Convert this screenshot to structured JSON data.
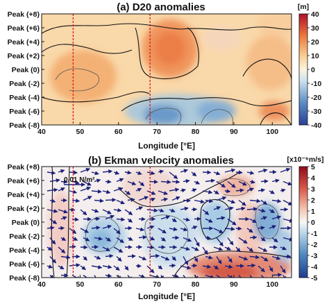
{
  "chart_data": [
    {
      "type": "heatmap",
      "title": "(a) D20 anomalies",
      "xlabel": "Longitude [°E]",
      "ylabel": "",
      "x_ticks": [
        40,
        50,
        60,
        70,
        80,
        90,
        100
      ],
      "xlim": [
        40,
        105
      ],
      "y_categories": [
        "Peak (-8)",
        "Peak (-6)",
        "Peak (-4)",
        "Peak (-2)",
        "Peak (0)",
        "Peak (+2)",
        "Peak (+4)",
        "Peak (+6)",
        "Peak (+8)"
      ],
      "ylim": [
        -8,
        8
      ],
      "colorbar": {
        "unit": "[m]",
        "ticks": [
          40,
          30,
          20,
          10,
          0,
          -10,
          -20,
          -30,
          -40
        ],
        "range": [
          -40,
          40
        ]
      },
      "vertical_lines": [
        48,
        68
      ],
      "grid": false
    },
    {
      "type": "heatmap",
      "title": "(b) Ekman velocity anomalies",
      "xlabel": "Longitude [°E]",
      "ylabel": "",
      "x_ticks": [
        40,
        50,
        60,
        70,
        80,
        90,
        100
      ],
      "xlim": [
        40,
        105
      ],
      "y_categories": [
        "Peak (-8)",
        "Peak (-6)",
        "Peak (-4)",
        "Peak (-2)",
        "Peak (0)",
        "Peak (+2)",
        "Peak (+4)",
        "Peak (+6)",
        "Peak (+8)"
      ],
      "ylim": [
        -8,
        8
      ],
      "colorbar": {
        "unit": "[x10⁻⁶m/s]",
        "ticks": [
          5,
          4,
          3,
          2,
          1,
          0,
          -1,
          -2,
          -3,
          -4,
          -5
        ],
        "range": [
          -5,
          5
        ]
      },
      "vertical_lines": [
        48,
        68
      ],
      "vector_reference": "0.01 N/m²",
      "grid": false
    }
  ]
}
